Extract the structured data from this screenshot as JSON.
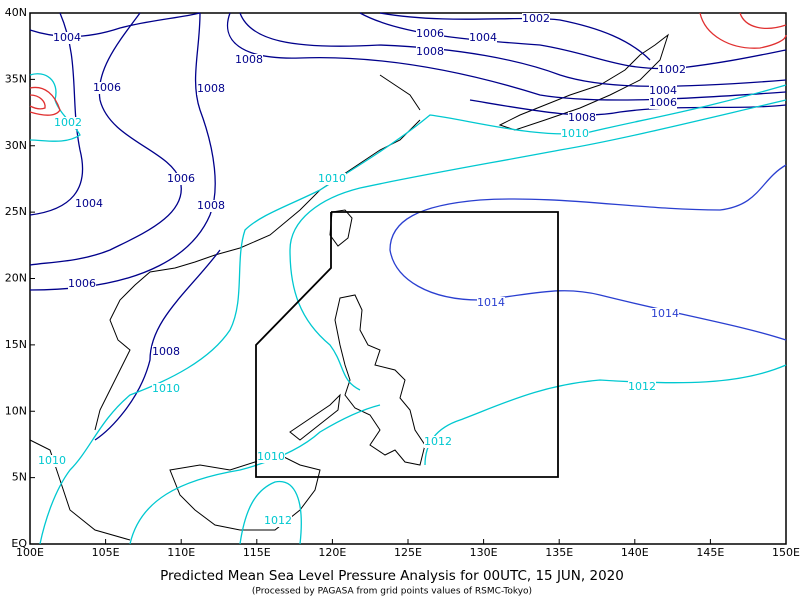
{
  "map": {
    "title": "Predicted Mean Sea Level Pressure Analysis for 00UTC, 15 JUN, 2020",
    "subtitle": "(Processed by PAGASA from grid points values of RSMC-Tokyo)",
    "lon_ticks": [
      "100E",
      "105E",
      "110E",
      "115E",
      "120E",
      "125E",
      "130E",
      "135E",
      "140E",
      "145E",
      "150E"
    ],
    "lat_ticks": [
      "EQ",
      "5N",
      "10N",
      "15N",
      "20N",
      "25N",
      "30N",
      "35N",
      "40N"
    ],
    "contour_labels": [
      {
        "text": "1002",
        "color": "#00008b"
      },
      {
        "text": "1004",
        "color": "#00008b"
      },
      {
        "text": "1006",
        "color": "#00008b"
      },
      {
        "text": "1004",
        "color": "#00008b"
      },
      {
        "text": "1008",
        "color": "#00008b"
      },
      {
        "text": "1008",
        "color": "#00008b"
      },
      {
        "text": "1006",
        "color": "#00008b"
      },
      {
        "text": "1008",
        "color": "#00008b"
      },
      {
        "text": "1002",
        "color": "#00008b"
      },
      {
        "text": "1004",
        "color": "#00008b"
      },
      {
        "text": "1006",
        "color": "#00008b"
      },
      {
        "text": "1008",
        "color": "#00008b"
      },
      {
        "text": "1010",
        "color": "#00c8d0"
      },
      {
        "text": "1002",
        "color": "#00c8d0"
      },
      {
        "text": "1010",
        "color": "#00c8d0"
      },
      {
        "text": "1006",
        "color": "#00008b"
      },
      {
        "text": "1004",
        "color": "#00008b"
      },
      {
        "text": "1008",
        "color": "#00008b"
      },
      {
        "text": "1006",
        "color": "#00008b"
      },
      {
        "text": "1014",
        "color": "#2a3fd0"
      },
      {
        "text": "1014",
        "color": "#2a3fd0"
      },
      {
        "text": "1008",
        "color": "#00008b"
      },
      {
        "text": "1010",
        "color": "#00c8d0"
      },
      {
        "text": "1012",
        "color": "#00c8d0"
      },
      {
        "text": "1012",
        "color": "#00c8d0"
      },
      {
        "text": "1010",
        "color": "#00c8d0"
      },
      {
        "text": "1010",
        "color": "#00c8d0"
      },
      {
        "text": "1012",
        "color": "#00c8d0"
      }
    ]
  }
}
